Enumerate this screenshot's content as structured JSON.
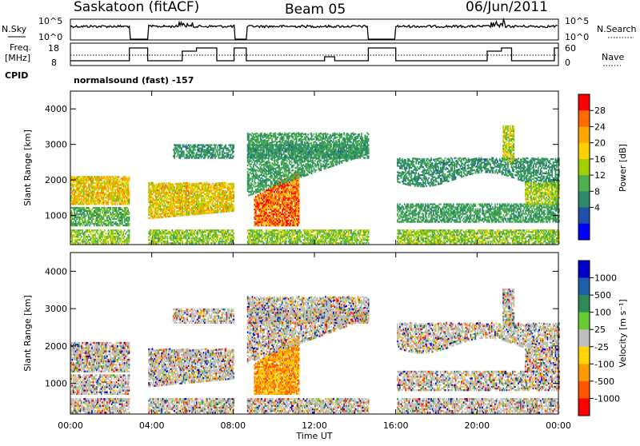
{
  "header": {
    "station": "Saskatoon (fitACF)",
    "beam": "Beam 05",
    "date": "06/Jun/2011",
    "cpid_label": "CPID",
    "cpid_value": "normalsound (fast) -157"
  },
  "strips": {
    "nsky_label": "N.Sky",
    "nsearch_label": "N.Search",
    "nsky_ticks": [
      "10^5",
      "10^0"
    ],
    "nsearch_ticks": [
      "10^5",
      "10^0"
    ],
    "freq_label": "Freq.",
    "freq_unit": "[MHz]",
    "freq_ticks": [
      "18",
      "8"
    ],
    "nave_label": "Nave",
    "nave_ticks": [
      "60",
      "0"
    ]
  },
  "time_axis": {
    "label": "Time UT",
    "ticks": [
      "00:00",
      "04:00",
      "08:00",
      "12:00",
      "16:00",
      "20:00",
      "00:00"
    ]
  },
  "chart_data": [
    {
      "type": "heatmap",
      "name": "power",
      "ylabel": "Slant Range [km]",
      "yticks": [
        "4000",
        "3000",
        "2000",
        "1000"
      ],
      "ylim": [
        180,
        4500
      ],
      "xlim_hours": [
        0,
        24
      ],
      "colorbar": {
        "label": "Power [dB]",
        "ticks": [
          "28",
          "24",
          "20",
          "16",
          "12",
          "8",
          "4"
        ],
        "colors": [
          "#ff0000",
          "#ff6a00",
          "#ffa500",
          "#ffd000",
          "#a0d000",
          "#4db04d",
          "#2e8b6a",
          "#1f4fa8",
          "#0000ff"
        ]
      }
    },
    {
      "type": "heatmap",
      "name": "velocity",
      "ylabel": "Slant Range [km]",
      "yticks": [
        "4000",
        "3000",
        "2000",
        "1000"
      ],
      "ylim": [
        180,
        4500
      ],
      "xlim_hours": [
        0,
        24
      ],
      "colorbar": {
        "label": "Velocity [m s⁻¹]",
        "ticks": [
          "1000",
          "500",
          "100",
          "25",
          "-25",
          "-100",
          "-500",
          "-1000"
        ],
        "colors": [
          "#0000cc",
          "#1f5fa8",
          "#2e8b57",
          "#66cc33",
          "#bebebe",
          "#ffd700",
          "#ff9900",
          "#ff5500",
          "#ff0000"
        ]
      }
    }
  ]
}
